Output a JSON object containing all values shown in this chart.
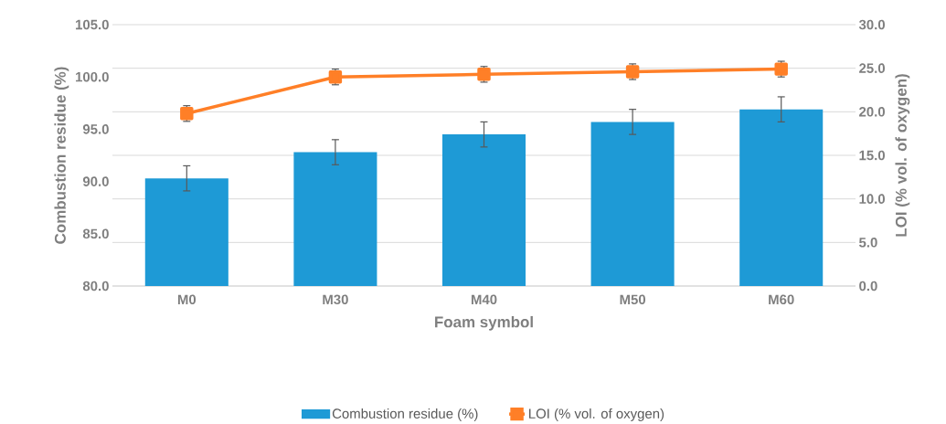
{
  "chart_data": {
    "type": "bar",
    "xlabel": "Foam symbol",
    "ylabel": "Combustion residue (%)",
    "y2label": "LOI (% vol. of oxygen)",
    "categories": [
      "M0",
      "M30",
      "M40",
      "M50",
      "M60"
    ],
    "series": [
      {
        "name": "Combustion residue (%)",
        "color": "#1e9ad6",
        "values": [
          90.3,
          92.8,
          94.5,
          95.7,
          96.9
        ],
        "errors": [
          1.2,
          1.2,
          1.2,
          1.2,
          1.2
        ]
      },
      {
        "name": "LOI (% vol. of oxygen)",
        "type": "line",
        "axis": "y2",
        "color": "#ff7f27",
        "marker": "square",
        "values": [
          19.8,
          24.0,
          24.3,
          24.6,
          24.9
        ],
        "errors": [
          0.9,
          0.9,
          0.9,
          0.9,
          0.9
        ]
      }
    ],
    "ylim": [
      80,
      105
    ],
    "yticks": [
      {
        "value": 80,
        "label": "80.0"
      },
      {
        "value": 85,
        "label": "85.0"
      },
      {
        "value": 90,
        "label": "90.0"
      },
      {
        "value": 95,
        "label": "95.0"
      },
      {
        "value": 100,
        "label": "100.0"
      },
      {
        "value": 105,
        "label": "105.0"
      }
    ],
    "y2lim": [
      0,
      30
    ],
    "y2ticks": [
      {
        "value": 0,
        "label": "0.0"
      },
      {
        "value": 5,
        "label": "5.0"
      },
      {
        "value": 10,
        "label": "10.0"
      },
      {
        "value": 15,
        "label": "15.0"
      },
      {
        "value": 20,
        "label": "20.0"
      },
      {
        "value": 25,
        "label": "25.0"
      },
      {
        "value": 30,
        "label": "30.0"
      }
    ],
    "grid": "y",
    "legend": "bottom"
  }
}
